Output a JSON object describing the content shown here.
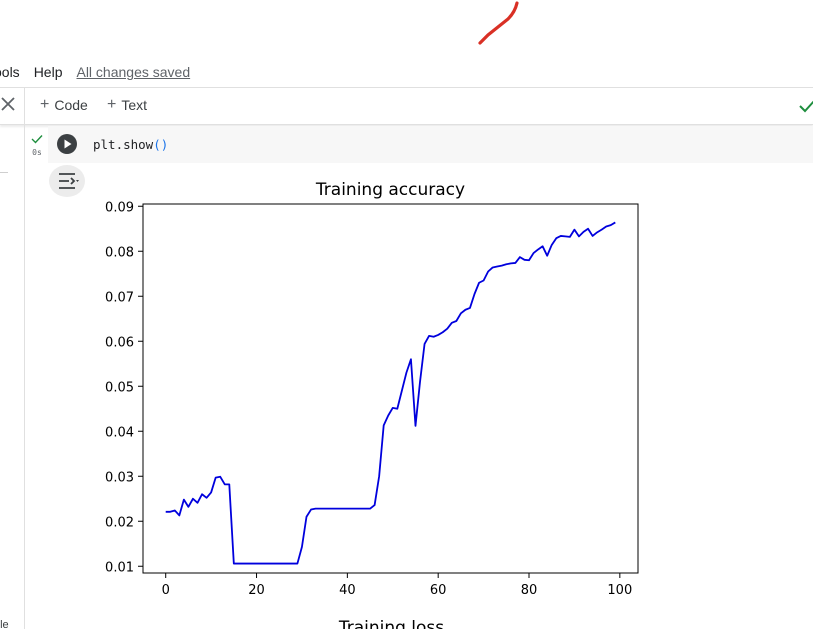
{
  "menu": {
    "items": [
      "ools",
      "Help"
    ],
    "saved_status": "All changes saved"
  },
  "toolbar": {
    "add_code_label": "Code",
    "add_text_label": "Text"
  },
  "cell": {
    "exec_time": "0s",
    "code_fn": "plt.show",
    "code_parens": "()"
  },
  "side_label": "ble",
  "colors": {
    "line": "#0000dd",
    "check": "#1e8e3e",
    "annotation": "#d93025"
  },
  "chart_data": [
    {
      "type": "line",
      "title": "Training accuracy",
      "xlabel": "",
      "ylabel": "",
      "xlim": [
        -5,
        104
      ],
      "ylim": [
        0.0085,
        0.0905
      ],
      "xticks": [
        0,
        20,
        40,
        60,
        80,
        100
      ],
      "yticks": [
        0.01,
        0.02,
        0.03,
        0.04,
        0.05,
        0.06,
        0.07,
        0.08,
        0.09
      ],
      "grid": false,
      "series": [
        {
          "name": "",
          "x": [
            0,
            1,
            2,
            3,
            4,
            5,
            6,
            7,
            8,
            9,
            10,
            11,
            12,
            13,
            14,
            15,
            16,
            17,
            18,
            19,
            20,
            21,
            22,
            23,
            24,
            25,
            26,
            27,
            28,
            29,
            30,
            31,
            32,
            33,
            34,
            35,
            36,
            37,
            38,
            39,
            40,
            41,
            42,
            43,
            44,
            45,
            46,
            47,
            48,
            49,
            50,
            51,
            52,
            53,
            54,
            55,
            56,
            57,
            58,
            59,
            60,
            61,
            62,
            63,
            64,
            65,
            66,
            67,
            68,
            69,
            70,
            71,
            72,
            73,
            74,
            75,
            76,
            77,
            78,
            79,
            80,
            81,
            82,
            83,
            84,
            85,
            86,
            87,
            88,
            89,
            90,
            91,
            92,
            93,
            94,
            95,
            96,
            97,
            98,
            99
          ],
          "values": [
            0.0221,
            0.0221,
            0.0224,
            0.0213,
            0.0248,
            0.0232,
            0.025,
            0.0241,
            0.026,
            0.0252,
            0.0264,
            0.0297,
            0.0299,
            0.0282,
            0.0282,
            0.0106,
            0.0106,
            0.0106,
            0.0106,
            0.0106,
            0.0106,
            0.0106,
            0.0106,
            0.0106,
            0.0106,
            0.0106,
            0.0106,
            0.0106,
            0.0106,
            0.0106,
            0.0143,
            0.021,
            0.0226,
            0.0228,
            0.0228,
            0.0228,
            0.0228,
            0.0228,
            0.0228,
            0.0228,
            0.0228,
            0.0228,
            0.0228,
            0.0228,
            0.0228,
            0.0228,
            0.0236,
            0.03,
            0.0413,
            0.0435,
            0.0452,
            0.045,
            0.049,
            0.053,
            0.056,
            0.0412,
            0.051,
            0.0594,
            0.0612,
            0.061,
            0.0614,
            0.062,
            0.0628,
            0.0641,
            0.0645,
            0.0662,
            0.067,
            0.0674,
            0.0705,
            0.073,
            0.0735,
            0.0755,
            0.0764,
            0.0766,
            0.0768,
            0.0771,
            0.0773,
            0.0774,
            0.0787,
            0.0781,
            0.078,
            0.0796,
            0.0804,
            0.0811,
            0.079,
            0.0814,
            0.0829,
            0.0834,
            0.0833,
            0.0832,
            0.0848,
            0.0833,
            0.0843,
            0.085,
            0.0834,
            0.0842,
            0.0848,
            0.0855,
            0.0858,
            0.0864
          ]
        }
      ]
    },
    {
      "type": "line",
      "title": "Training loss"
    }
  ]
}
